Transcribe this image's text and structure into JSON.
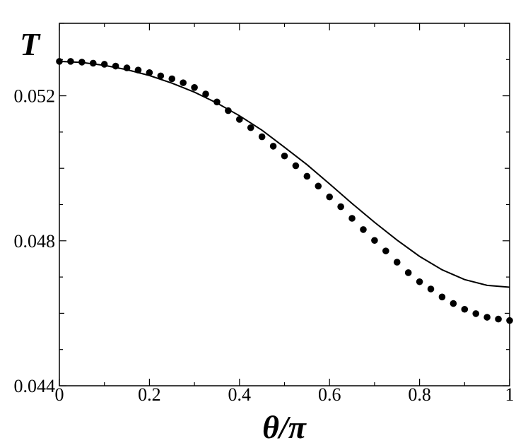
{
  "chart_data": {
    "type": "scatter",
    "xlabel": "θ/π",
    "ylabel": "T",
    "xlim": [
      0,
      1
    ],
    "ylim": [
      0.044,
      0.054
    ],
    "x_ticks": [
      "0",
      "0.2",
      "0.4",
      "0.6",
      "0.8",
      "1"
    ],
    "y_ticks": [
      "0.044",
      "0.048",
      "0.052"
    ],
    "grid": false,
    "series": [
      {
        "kind": "points",
        "marker": "filled-circle",
        "x": [
          0,
          0.025,
          0.05,
          0.075,
          0.1,
          0.125,
          0.15,
          0.175,
          0.2,
          0.225,
          0.25,
          0.275,
          0.3,
          0.325,
          0.35,
          0.375,
          0.4,
          0.425,
          0.45,
          0.475,
          0.5,
          0.525,
          0.55,
          0.575,
          0.6,
          0.625,
          0.65,
          0.675,
          0.7,
          0.725,
          0.75,
          0.775,
          0.8,
          0.825,
          0.85,
          0.875,
          0.9,
          0.925,
          0.95,
          0.975,
          1
        ],
        "y": [
          0.05295,
          0.05295,
          0.05293,
          0.0529,
          0.05287,
          0.05282,
          0.05277,
          0.05271,
          0.05264,
          0.05255,
          0.05247,
          0.05236,
          0.05223,
          0.05205,
          0.05183,
          0.05159,
          0.05135,
          0.05112,
          0.05087,
          0.05061,
          0.05034,
          0.05007,
          0.04978,
          0.04951,
          0.04921,
          0.04894,
          0.04862,
          0.04831,
          0.04801,
          0.04772,
          0.04741,
          0.04712,
          0.04687,
          0.04667,
          0.04645,
          0.04627,
          0.04611,
          0.04599,
          0.04589,
          0.04584,
          0.0458
        ]
      },
      {
        "kind": "line",
        "x": [
          0,
          0.05,
          0.1,
          0.15,
          0.2,
          0.25,
          0.3,
          0.35,
          0.4,
          0.45,
          0.5,
          0.55,
          0.6,
          0.65,
          0.7,
          0.75,
          0.8,
          0.85,
          0.9,
          0.95,
          1
        ],
        "y": [
          0.05295,
          0.05292,
          0.05284,
          0.05272,
          0.05256,
          0.05235,
          0.0521,
          0.0518,
          0.05145,
          0.05105,
          0.05058,
          0.0501,
          0.04957,
          0.04903,
          0.04851,
          0.04802,
          0.04757,
          0.0472,
          0.04693,
          0.04677,
          0.04672
        ]
      }
    ]
  }
}
